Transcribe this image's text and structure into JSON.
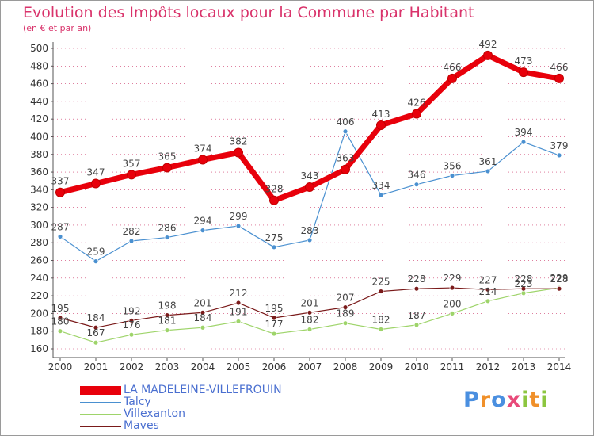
{
  "header": {
    "title": "Evolution des Impôts locaux pour la Commune par Habitant",
    "subtitle": "(en € et par an)"
  },
  "logo": {
    "text": "Proxiti"
  },
  "colors": {
    "title": "#d9336b",
    "legend_text": "#4a6fd0",
    "axis": "#555555",
    "grid": "#cc3366"
  },
  "chart_data": {
    "type": "line",
    "title": "Evolution des Impôts locaux pour la Commune par Habitant",
    "subtitle": "(en € et par an)",
    "x": [
      "2000",
      "2001",
      "2002",
      "2003",
      "2004",
      "2005",
      "2006",
      "2007",
      "2008",
      "2009",
      "2010",
      "2011",
      "2012",
      "2013",
      "2014"
    ],
    "ylim": [
      160,
      500
    ],
    "yticks": [
      160,
      180,
      200,
      220,
      240,
      260,
      280,
      300,
      320,
      340,
      360,
      380,
      400,
      420,
      440,
      460,
      480,
      500
    ],
    "legend_position": "bottom-left",
    "series": [
      {
        "name": "LA MADELEINE-VILLEFROUIN",
        "color": "#e8000b",
        "values": [
          337,
          347,
          357,
          365,
          374,
          382,
          328,
          343,
          363,
          413,
          426,
          466,
          492,
          473,
          466
        ]
      },
      {
        "name": "Talcy",
        "color": "#4a90d0",
        "values": [
          287,
          259,
          282,
          286,
          294,
          299,
          275,
          283,
          406,
          334,
          346,
          356,
          361,
          394,
          379
        ]
      },
      {
        "name": "Villexanton",
        "color": "#9ed46a",
        "values": [
          180,
          167,
          176,
          181,
          184,
          191,
          177,
          182,
          189,
          182,
          187,
          200,
          214,
          223,
          229
        ]
      },
      {
        "name": "Maves",
        "color": "#7a1a1a",
        "values": [
          195,
          184,
          192,
          198,
          201,
          212,
          195,
          201,
          207,
          225,
          228,
          229,
          227,
          228,
          228
        ]
      }
    ]
  }
}
